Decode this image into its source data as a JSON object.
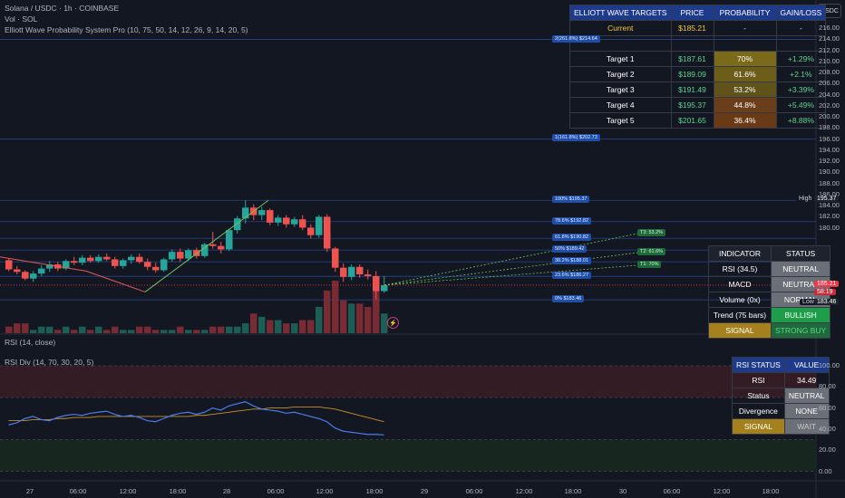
{
  "header": {
    "symbol": "Solana / USDC · 1h · COINBASE",
    "vol": "Vol · SOL",
    "indicator": "Elliott Wave Probability System Pro (10, 75, 50, 14, 12, 26, 9, 14, 20, 5)"
  },
  "quote_currency": "USDC",
  "elliott_table": {
    "headers": [
      "ELLIOTT WAVE TARGETS",
      "PRICE",
      "PROBABILITY",
      "GAIN/LOSS"
    ],
    "current": {
      "label": "Current",
      "price": "$185.21",
      "prob": "-",
      "gain": "-"
    },
    "rows": [
      {
        "label": "Target 1",
        "price": "$187.61",
        "prob": "70%",
        "gain": "+1.29%"
      },
      {
        "label": "Target 2",
        "price": "$189.09",
        "prob": "61.6%",
        "gain": "+2.1%"
      },
      {
        "label": "Target 3",
        "price": "$191.49",
        "prob": "53.2%",
        "gain": "+3.39%"
      },
      {
        "label": "Target 4",
        "price": "$195.37",
        "prob": "44.8%",
        "gain": "+5.49%"
      },
      {
        "label": "Target 5",
        "price": "$201.65",
        "prob": "36.4%",
        "gain": "+8.88%"
      }
    ]
  },
  "indicator_table": {
    "headers": [
      "INDICATOR",
      "STATUS"
    ],
    "rows": [
      {
        "label": "RSI (34.5)",
        "status": "NEUTRAL"
      },
      {
        "label": "MACD",
        "status": "NEUTRAL"
      },
      {
        "label": "Volume (0x)",
        "status": "NORMAL"
      },
      {
        "label": "Trend (75 bars)",
        "status": "BULLISH"
      },
      {
        "label": "SIGNAL",
        "status": "STRONG BUY"
      }
    ]
  },
  "rsi_table": {
    "headers": [
      "RSI STATUS",
      "VALUE"
    ],
    "rows": [
      {
        "label": "RSI",
        "value": "34.49"
      },
      {
        "label": "Status",
        "value": "NEUTRAL"
      },
      {
        "label": "Divergence",
        "value": "NONE"
      },
      {
        "label": "SIGNAL",
        "value": "WAIT"
      }
    ]
  },
  "fib_levels": [
    {
      "price": 214.64,
      "label": "2(261.8%) $214.64"
    },
    {
      "price": 202.73,
      "label": "1(161.8%) $202.73"
    },
    {
      "price": 195.37,
      "label": "100% $195.37"
    },
    {
      "price": 192.82,
      "label": "78.6% $192.82"
    },
    {
      "price": 190.82,
      "label": "61.8% $190.82"
    },
    {
      "price": 189.42,
      "label": "50% $189.42"
    },
    {
      "price": 188.01,
      "label": "38.2% $188.01"
    },
    {
      "price": 186.27,
      "label": "23.6% $186.27"
    },
    {
      "price": 183.46,
      "label": "0% $183.46"
    }
  ],
  "target_labels": [
    "T3: 53.2%",
    "T2: 61.6%",
    "T1: 70%"
  ],
  "price_axis": {
    "ticks": [
      "216.00",
      "214.00",
      "212.00",
      "210.00",
      "208.00",
      "206.00",
      "204.00",
      "202.00",
      "200.00",
      "198.00",
      "196.00",
      "194.00",
      "192.00",
      "190.00",
      "188.00",
      "186.00",
      "184.00",
      "182.00",
      "180.00"
    ],
    "high_label": "High",
    "high_value": "195.37",
    "low_label": "Low",
    "low_value": "183.46",
    "current_price": "185.21",
    "countdown": "58:19"
  },
  "rsi_pane": {
    "title": "RSI (14, close)",
    "div_title": "RSI Div (14, 70, 30, 20, 5)",
    "ticks": [
      "100.00",
      "80.00",
      "60.00",
      "40.00",
      "20.00",
      "0.00"
    ]
  },
  "time_axis": [
    "27",
    "06:00",
    "12:00",
    "18:00",
    "28",
    "06:00",
    "12:00",
    "18:00",
    "29",
    "06:00",
    "12:00",
    "18:00",
    "30",
    "06:00",
    "12:00",
    "18:00"
  ],
  "chart_data": {
    "type": "candlestick",
    "x": "hourly bars, Jan 27 to Jan 28",
    "y_unit": "USDC",
    "ylim": [
      179,
      217.5
    ],
    "candles": [
      [
        188.2,
        188.4,
        186.9,
        187.1
      ],
      [
        187.1,
        187.5,
        186.5,
        186.8
      ],
      [
        186.8,
        187.0,
        185.8,
        186.0
      ],
      [
        186.0,
        186.9,
        185.6,
        186.6
      ],
      [
        186.6,
        187.6,
        186.3,
        187.2
      ],
      [
        187.2,
        188.1,
        186.8,
        187.7
      ],
      [
        187.7,
        188.0,
        186.9,
        187.2
      ],
      [
        187.2,
        188.3,
        187.0,
        188.1
      ],
      [
        188.1,
        188.6,
        187.6,
        187.9
      ],
      [
        187.9,
        188.8,
        187.6,
        188.5
      ],
      [
        188.5,
        188.8,
        187.9,
        188.1
      ],
      [
        188.1,
        188.9,
        187.9,
        188.6
      ],
      [
        188.6,
        189.0,
        188.1,
        188.3
      ],
      [
        188.3,
        188.6,
        187.2,
        187.5
      ],
      [
        187.5,
        188.4,
        187.2,
        188.2
      ],
      [
        188.2,
        188.9,
        187.8,
        188.6
      ],
      [
        188.6,
        189.0,
        187.8,
        188.0
      ],
      [
        188.0,
        188.4,
        187.0,
        187.4
      ],
      [
        187.4,
        187.9,
        186.7,
        187.0
      ],
      [
        187.0,
        188.5,
        186.8,
        188.3
      ],
      [
        188.3,
        189.5,
        188.0,
        189.2
      ],
      [
        189.2,
        189.6,
        188.0,
        188.4
      ],
      [
        188.4,
        189.6,
        188.1,
        189.4
      ],
      [
        189.4,
        189.7,
        188.4,
        188.7
      ],
      [
        188.7,
        190.3,
        188.5,
        190.1
      ],
      [
        190.1,
        191.6,
        189.6,
        189.9
      ],
      [
        189.9,
        190.4,
        189.0,
        189.5
      ],
      [
        189.5,
        192.0,
        189.3,
        191.8
      ],
      [
        191.8,
        193.5,
        191.4,
        193.2
      ],
      [
        193.2,
        195.37,
        192.6,
        194.5
      ],
      [
        194.5,
        194.9,
        193.0,
        193.6
      ],
      [
        193.6,
        194.6,
        193.0,
        194.2
      ],
      [
        194.2,
        194.4,
        192.4,
        192.7
      ],
      [
        192.7,
        193.6,
        192.3,
        193.3
      ],
      [
        193.3,
        193.6,
        192.1,
        192.5
      ],
      [
        192.5,
        193.4,
        192.2,
        193.1
      ],
      [
        193.1,
        193.6,
        191.8,
        192.1
      ],
      [
        192.1,
        192.5,
        190.8,
        191.2
      ],
      [
        191.2,
        193.6,
        190.9,
        193.4
      ],
      [
        193.4,
        193.7,
        189.2,
        189.6
      ],
      [
        189.6,
        189.8,
        186.8,
        187.3
      ],
      [
        187.3,
        187.8,
        185.6,
        186.2
      ],
      [
        186.2,
        187.7,
        185.8,
        187.4
      ],
      [
        187.4,
        187.7,
        186.1,
        186.5
      ],
      [
        186.5,
        187.1,
        185.9,
        186.3
      ],
      [
        186.3,
        186.9,
        183.46,
        184.5
      ],
      [
        184.5,
        186.3,
        184.3,
        185.21
      ]
    ],
    "volume": [
      2,
      3,
      3,
      1,
      2,
      2,
      1,
      2,
      1,
      2,
      1,
      2,
      1,
      2,
      1,
      1,
      2,
      2,
      1,
      1,
      1,
      2,
      1,
      1,
      1,
      2,
      2,
      2,
      2,
      3,
      6,
      5,
      4,
      4,
      3,
      3,
      4,
      4,
      8,
      13,
      16,
      10,
      9,
      9,
      8,
      14,
      6
    ],
    "rsi": [
      44,
      46,
      50,
      52,
      49,
      48,
      51,
      53,
      54,
      53,
      55,
      56,
      57,
      54,
      52,
      53,
      51,
      48,
      47,
      50,
      53,
      55,
      56,
      54,
      56,
      60,
      58,
      62,
      64,
      66,
      62,
      59,
      58,
      57,
      55,
      56,
      54,
      52,
      50,
      47,
      41,
      38,
      37,
      36,
      35,
      35,
      34.5
    ],
    "rsi_ma": [
      48,
      48,
      48,
      49,
      49,
      49,
      50,
      50,
      51,
      51,
      51,
      52,
      52,
      52,
      52,
      52,
      52,
      52,
      52,
      52,
      52,
      52,
      52,
      53,
      53,
      54,
      55,
      56,
      57,
      58,
      59,
      59,
      60,
      60,
      60,
      61,
      61,
      61,
      61,
      60,
      59,
      57,
      55,
      53,
      51,
      49,
      47
    ],
    "rsi_ylim": [
      0,
      100
    ],
    "rsi_bands": {
      "upper": 70,
      "lower": 30
    }
  }
}
